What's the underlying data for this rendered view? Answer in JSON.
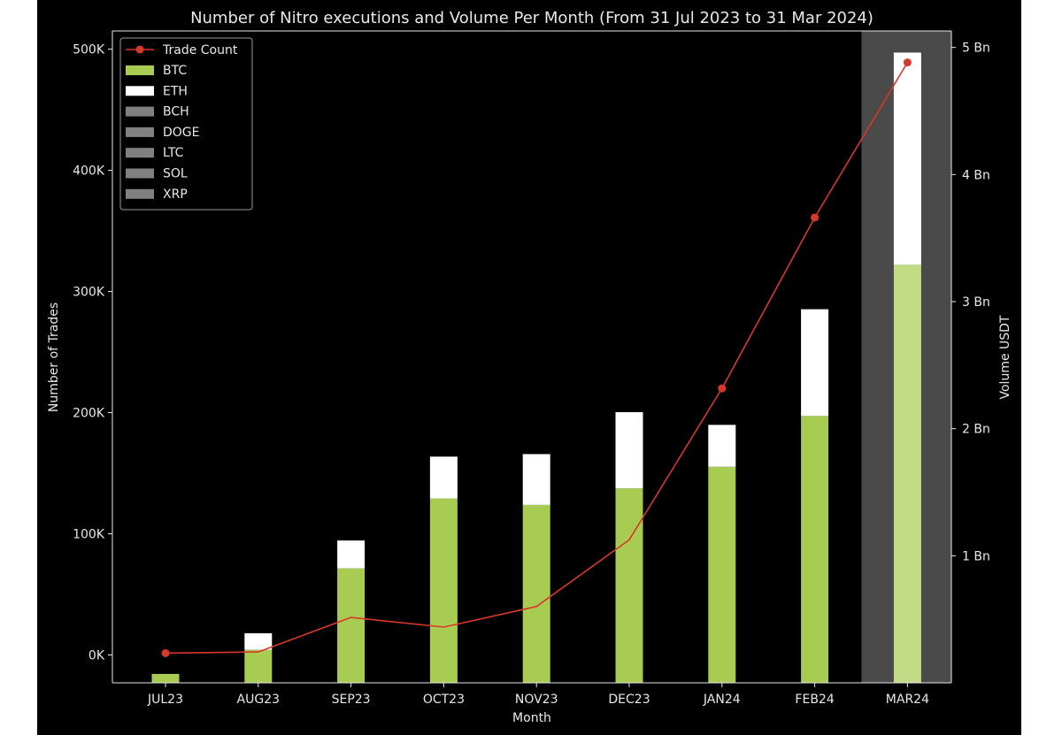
{
  "chart_data": {
    "type": "bar",
    "title": "Number of Nitro executions and Volume Per Month (From 31 Jul 2023 to 31 Mar 2024)",
    "xlabel": "Month",
    "ylabel_left": "Number of Trades",
    "ylabel_right": "Volume USDT",
    "categories": [
      "JUL23",
      "AUG23",
      "SEP23",
      "OCT23",
      "NOV23",
      "DEC23",
      "JAN24",
      "FEB24",
      "MAR24"
    ],
    "left_axis": {
      "ylim": [
        -23000,
        515000
      ],
      "ticks": [
        0,
        100000,
        200000,
        300000,
        400000,
        500000
      ],
      "tick_labels": [
        "0K",
        "100K",
        "200K",
        "300K",
        "400K",
        "500K"
      ]
    },
    "right_axis": {
      "ylim": [
        0,
        5.13
      ],
      "ticks": [
        1,
        2,
        3,
        4,
        5
      ],
      "tick_labels": [
        "1 Bn",
        "2 Bn",
        "3 Bn",
        "4 Bn",
        "5 Bn"
      ]
    },
    "line_series": {
      "name": "Trade Count",
      "axis": "left",
      "values": [
        1500,
        2500,
        31000,
        23000,
        40000,
        95000,
        220000,
        361000,
        489000
      ]
    },
    "bar_series": [
      {
        "name": "BTC",
        "axis": "right",
        "values": [
          0.07,
          0.26,
          0.9,
          1.45,
          1.4,
          1.53,
          1.7,
          2.1,
          3.29
        ]
      },
      {
        "name": "ETH",
        "axis": "right",
        "values": [
          0.0,
          0.13,
          0.22,
          0.33,
          0.4,
          0.6,
          0.33,
          0.84,
          1.67
        ]
      },
      {
        "name": "BCH",
        "axis": "right",
        "values": [
          0,
          0,
          0,
          0,
          0,
          0,
          0,
          0,
          0
        ]
      },
      {
        "name": "DOGE",
        "axis": "right",
        "values": [
          0,
          0,
          0,
          0,
          0,
          0,
          0,
          0,
          0
        ]
      },
      {
        "name": "LTC",
        "axis": "right",
        "values": [
          0,
          0,
          0,
          0,
          0,
          0,
          0,
          0,
          0
        ]
      },
      {
        "name": "SOL",
        "axis": "right",
        "values": [
          0,
          0,
          0,
          0,
          0,
          0,
          0,
          0,
          0
        ]
      },
      {
        "name": "XRP",
        "axis": "right",
        "values": [
          0,
          0,
          0,
          0,
          0,
          0,
          0,
          0,
          0
        ]
      }
    ],
    "highlight_category": "MAR24",
    "legend_placement": "top-left",
    "grid": false,
    "colors": {
      "background": "#000000",
      "line": "#d9372b",
      "BTC": "#a8cc52",
      "ETH": "#ffffff",
      "other": "#808080",
      "highlight_band": "#4a4a4a",
      "text": "#e8e8e8"
    }
  }
}
